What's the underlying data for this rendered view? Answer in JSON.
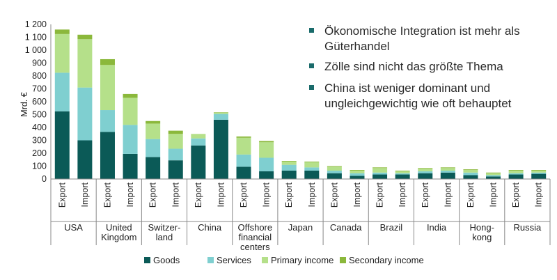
{
  "chart_data": {
    "type": "bar",
    "stacked": true,
    "ylabel": "Mrd. €",
    "ylim": [
      0,
      1200
    ],
    "yticks": [
      0,
      100,
      200,
      300,
      400,
      500,
      600,
      700,
      800,
      900,
      1000,
      1100,
      1200
    ],
    "ytick_labels": [
      "0",
      "100",
      "200",
      "300",
      "400",
      "500",
      "600",
      "700",
      "800",
      "900",
      "1 000",
      "1 100",
      "1 200"
    ],
    "groups": [
      {
        "label": [
          "USA"
        ]
      },
      {
        "label": [
          "United",
          "Kingdom"
        ]
      },
      {
        "label": [
          "Switzer-",
          "land"
        ]
      },
      {
        "label": [
          "China"
        ]
      },
      {
        "label": [
          "Offshore",
          "financial",
          "centers"
        ]
      },
      {
        "label": [
          "Japan"
        ]
      },
      {
        "label": [
          "Canada"
        ]
      },
      {
        "label": [
          "Brazil"
        ]
      },
      {
        "label": [
          "India"
        ]
      },
      {
        "label": [
          "Hong-",
          "kong"
        ]
      },
      {
        "label": [
          "Russia"
        ]
      }
    ],
    "sub_categories": [
      "Export",
      "Import"
    ],
    "series": [
      {
        "name": "Goods",
        "color": "#0b5a57",
        "values": [
          525,
          300,
          365,
          195,
          170,
          145,
          260,
          460,
          95,
          60,
          65,
          65,
          45,
          25,
          35,
          35,
          45,
          50,
          30,
          20,
          35,
          40
        ]
      },
      {
        "name": "Services",
        "color": "#7fcfd0",
        "values": [
          300,
          410,
          170,
          225,
          140,
          90,
          55,
          45,
          95,
          105,
          45,
          25,
          20,
          20,
          15,
          10,
          15,
          15,
          20,
          10,
          10,
          10
        ]
      },
      {
        "name": "Primary income",
        "color": "#b5e08a",
        "values": [
          300,
          375,
          350,
          210,
          120,
          115,
          35,
          10,
          130,
          120,
          25,
          40,
          30,
          20,
          35,
          15,
          20,
          20,
          20,
          15,
          20,
          15
        ]
      },
      {
        "name": "Secondary income",
        "color": "#8bb83b",
        "values": [
          35,
          35,
          45,
          30,
          20,
          25,
          0,
          3,
          10,
          10,
          5,
          5,
          5,
          5,
          5,
          5,
          5,
          5,
          5,
          5,
          5,
          5
        ]
      }
    ],
    "legend_position": "bottom"
  },
  "bullets": [
    {
      "lines": [
        "Ökonomische Integration ist mehr als",
        "Güterhandel"
      ]
    },
    {
      "lines": [
        "Zölle sind nicht das größte Thema"
      ]
    },
    {
      "lines": [
        "China ist weniger dominant und",
        "ungleichgewichtig wie oft behauptet"
      ]
    }
  ],
  "colors": {
    "bullet": "#1a6b6b",
    "axis": "#888888"
  }
}
